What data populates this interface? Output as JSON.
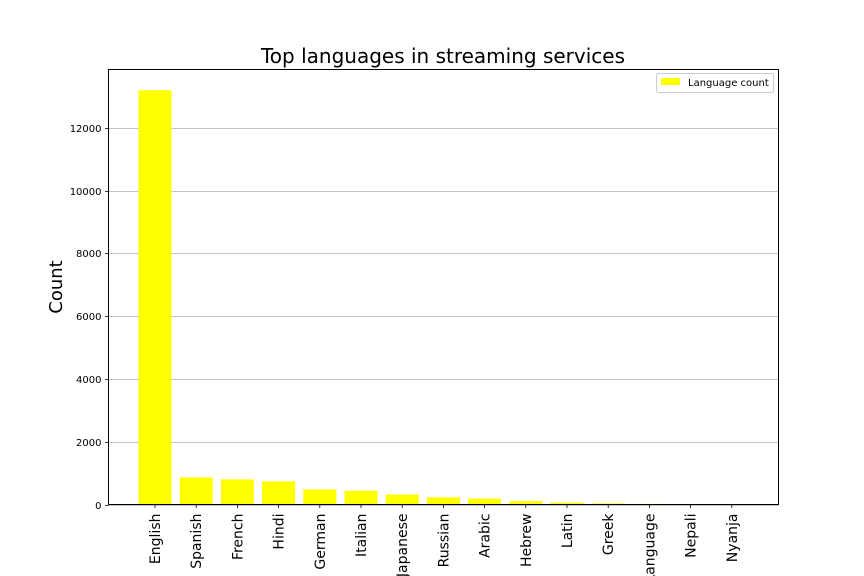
{
  "chart_data": {
    "type": "bar",
    "title": "Top languages in streaming services",
    "xlabel": "",
    "ylabel": "Count",
    "categories": [
      "English",
      "Spanish",
      "French",
      "Hindi",
      "German",
      "Italian",
      "Japanese",
      "Russian",
      "Arabic",
      "Hebrew",
      "Latin",
      "Greek",
      "Language",
      "Nepali",
      "Nyanja"
    ],
    "series": [
      {
        "name": "Language count",
        "color": "#ffff00",
        "values": [
          13200,
          860,
          800,
          740,
          480,
          440,
          320,
          230,
          190,
          110,
          60,
          35,
          20,
          5,
          3
        ]
      }
    ],
    "ylim": [
      0,
      13860
    ],
    "yticks": [
      0,
      2000,
      4000,
      6000,
      8000,
      10000,
      12000
    ],
    "grid": "horizontal",
    "legend_position": "top-right"
  }
}
